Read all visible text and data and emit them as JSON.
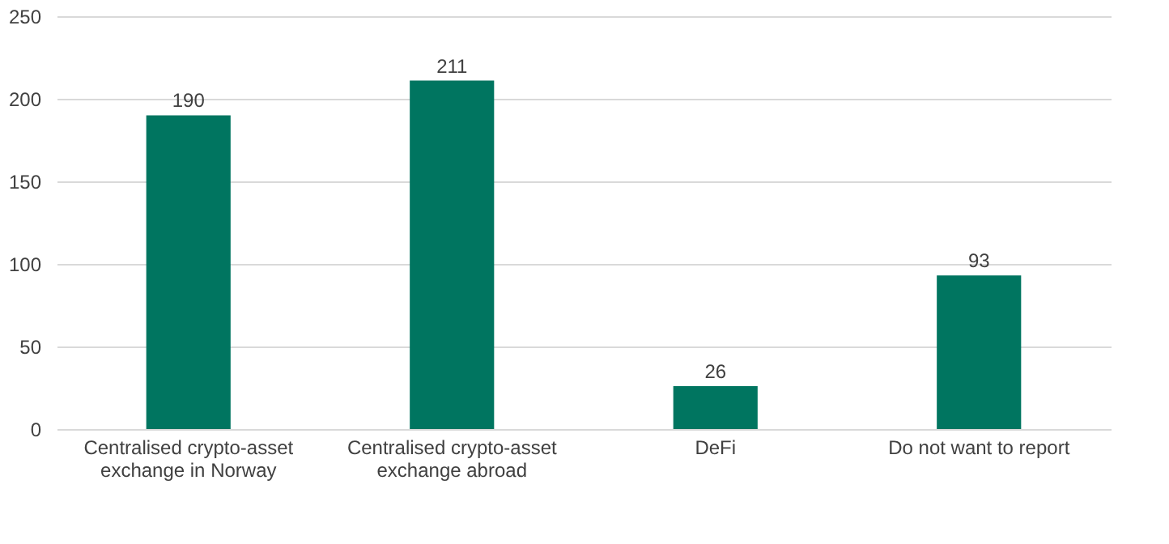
{
  "chart_data": {
    "type": "bar",
    "categories": [
      "Centralised crypto-asset exchange in Norway",
      "Centralised crypto-asset exchange abroad",
      "DeFi",
      "Do not want to report"
    ],
    "values": [
      190,
      211,
      26,
      93
    ],
    "color": "#007560",
    "ylim": [
      0,
      250
    ],
    "yticks": [
      0,
      50,
      100,
      150,
      200,
      250
    ],
    "grid": "y",
    "data_labels": true
  }
}
